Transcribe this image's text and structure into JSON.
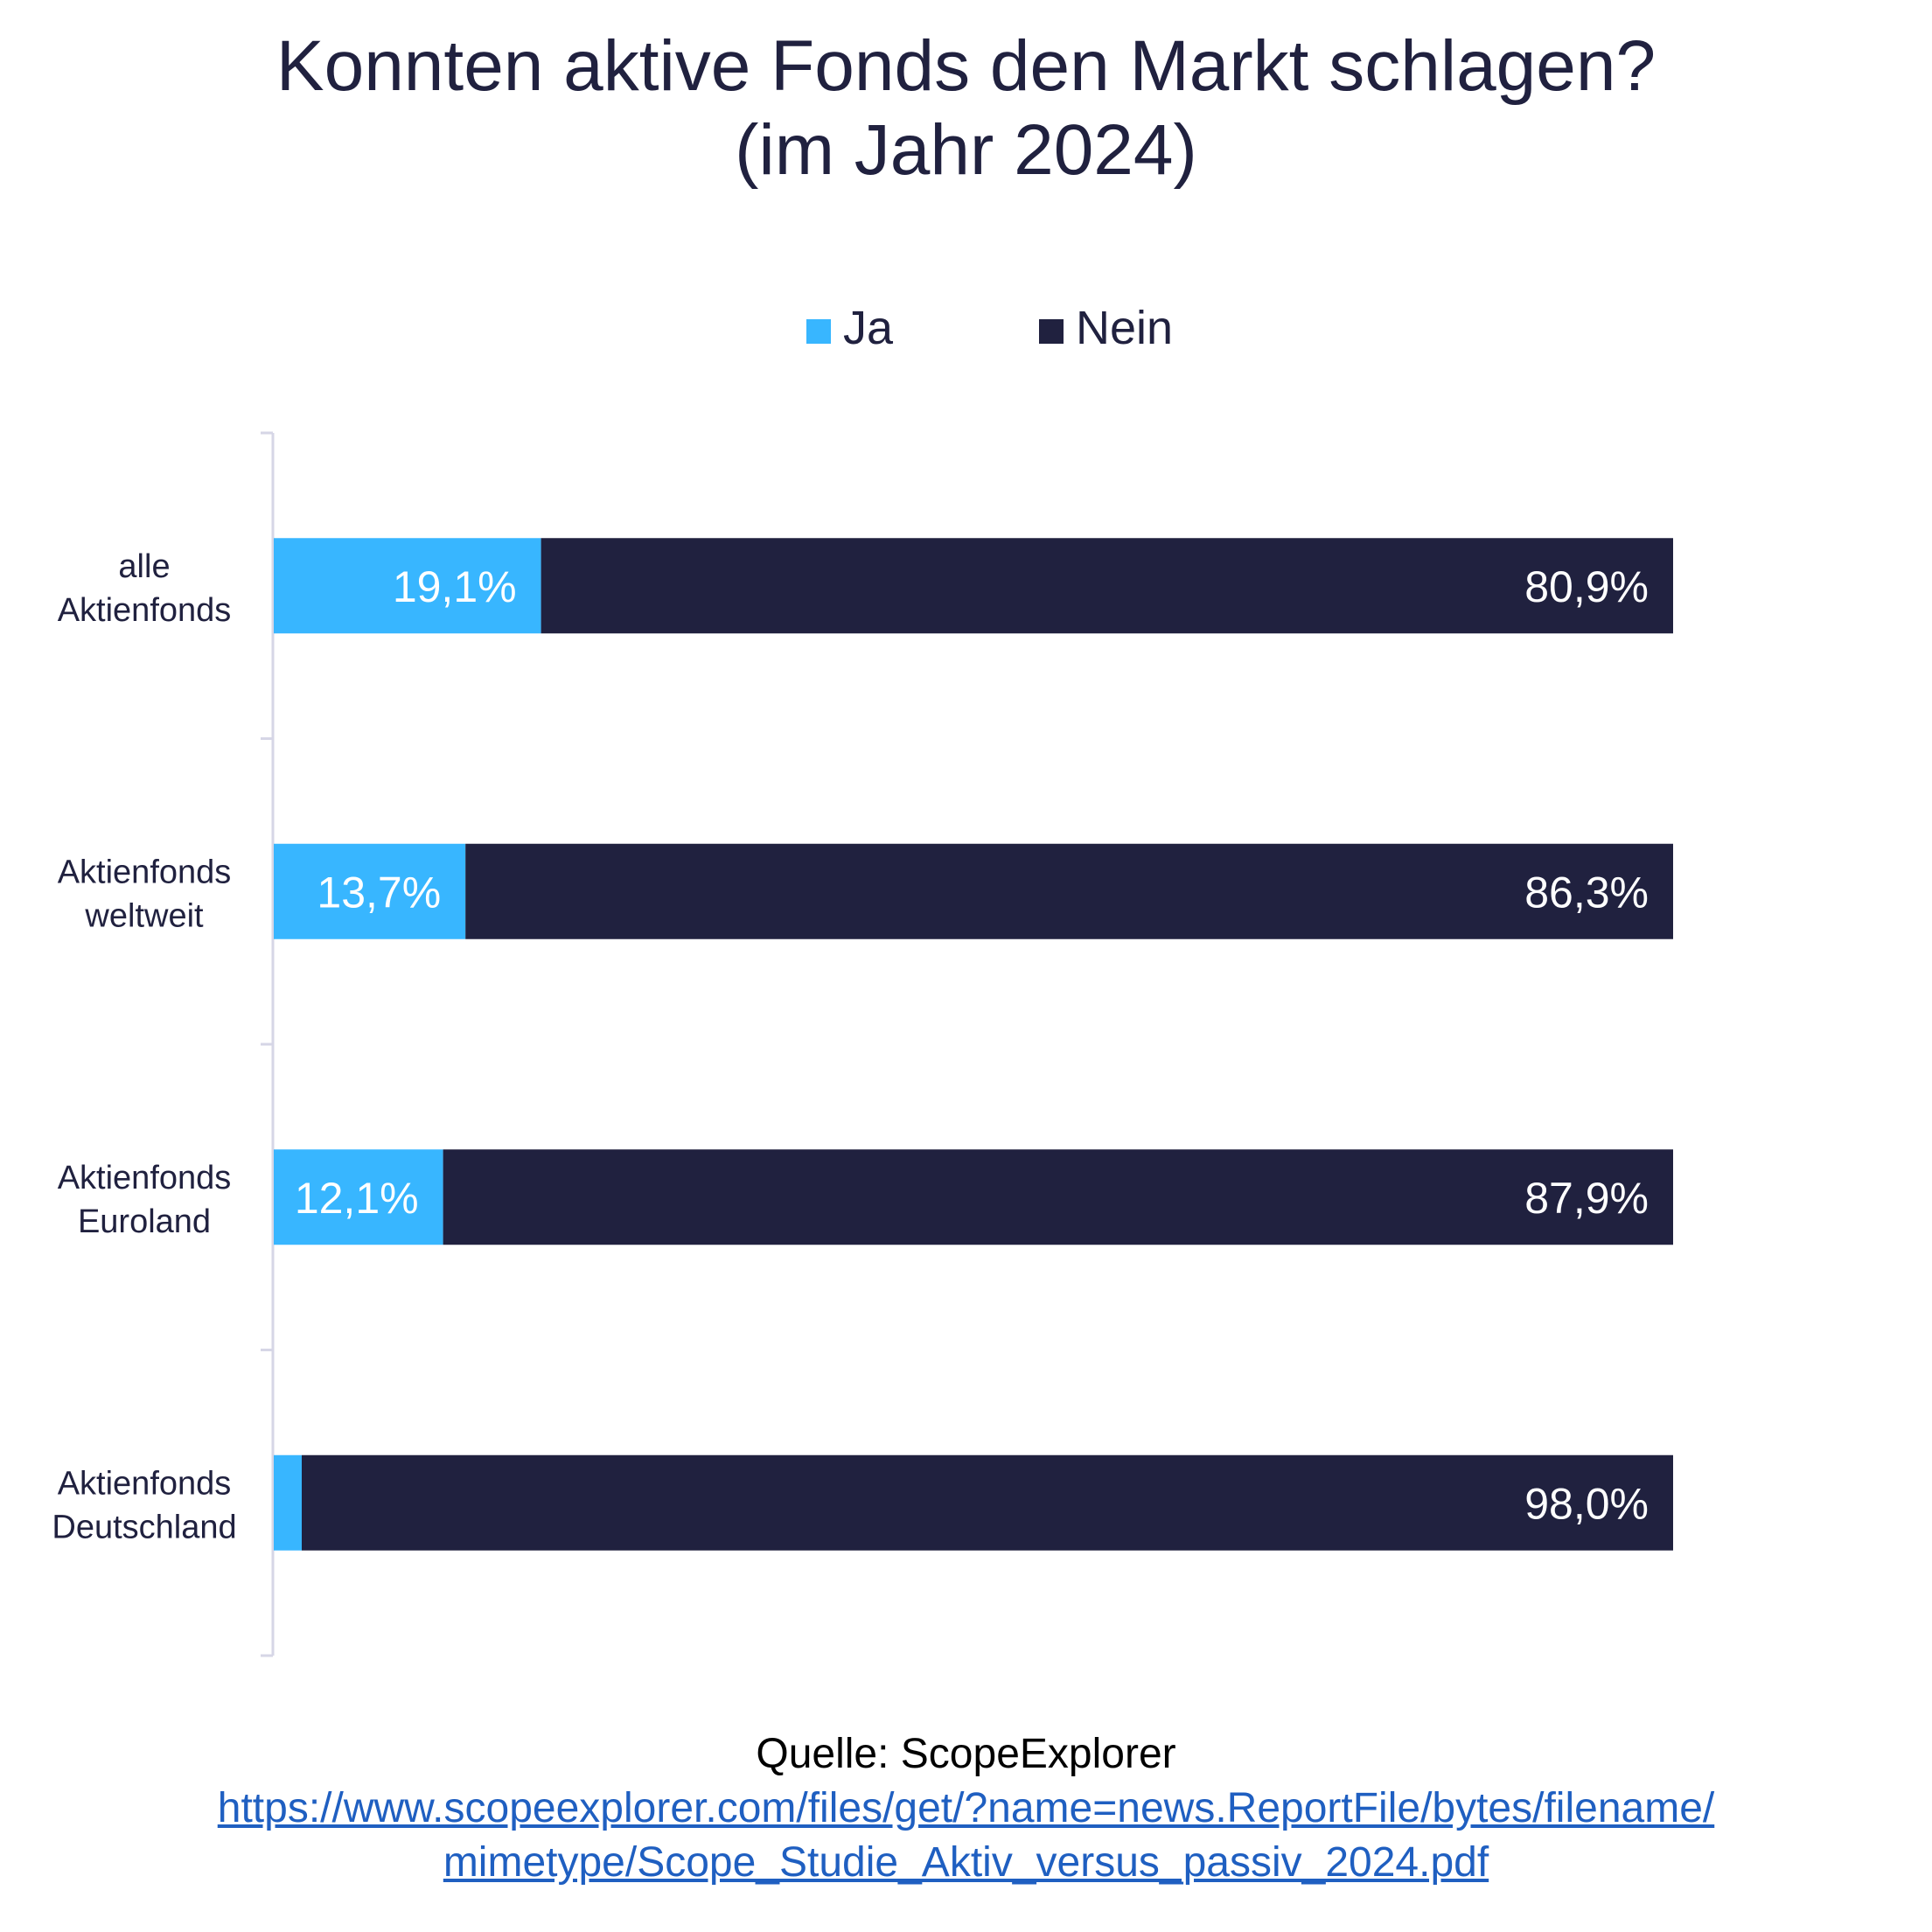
{
  "chart_data": {
    "type": "bar",
    "orientation": "horizontal",
    "stacked": true,
    "title": [
      "Konnten aktive Fonds den Markt schlagen?",
      "(im Jahr 2024)"
    ],
    "categories": [
      [
        "alle",
        "Aktienfonds"
      ],
      [
        "Aktienfonds",
        "weltweit"
      ],
      [
        "Aktienfonds",
        "Euroland"
      ],
      [
        "Aktienfonds",
        "Deutschland"
      ]
    ],
    "series": [
      {
        "name": "Ja",
        "color": "#38b6ff",
        "values": [
          19.1,
          13.7,
          12.1,
          2.0
        ],
        "labels": [
          "19,1%",
          "13,7%",
          "12,1%",
          ""
        ]
      },
      {
        "name": "Nein",
        "color": "#20213f",
        "values": [
          80.9,
          86.3,
          87.9,
          98.0
        ],
        "labels": [
          "80,9%",
          "86,3%",
          "87,9%",
          "98,0%"
        ]
      }
    ],
    "xlim": [
      0,
      100
    ],
    "legend_position": "top-center",
    "grid": false
  },
  "source": {
    "label": "Quelle: ScopeExplorer",
    "url_lines": [
      "https://www.scopeexplorer.com/files/get/?name=news.ReportFile/bytes/filename/",
      "mimetype/Scope_Studie_Aktiv_versus_passiv_2024.pdf"
    ]
  }
}
